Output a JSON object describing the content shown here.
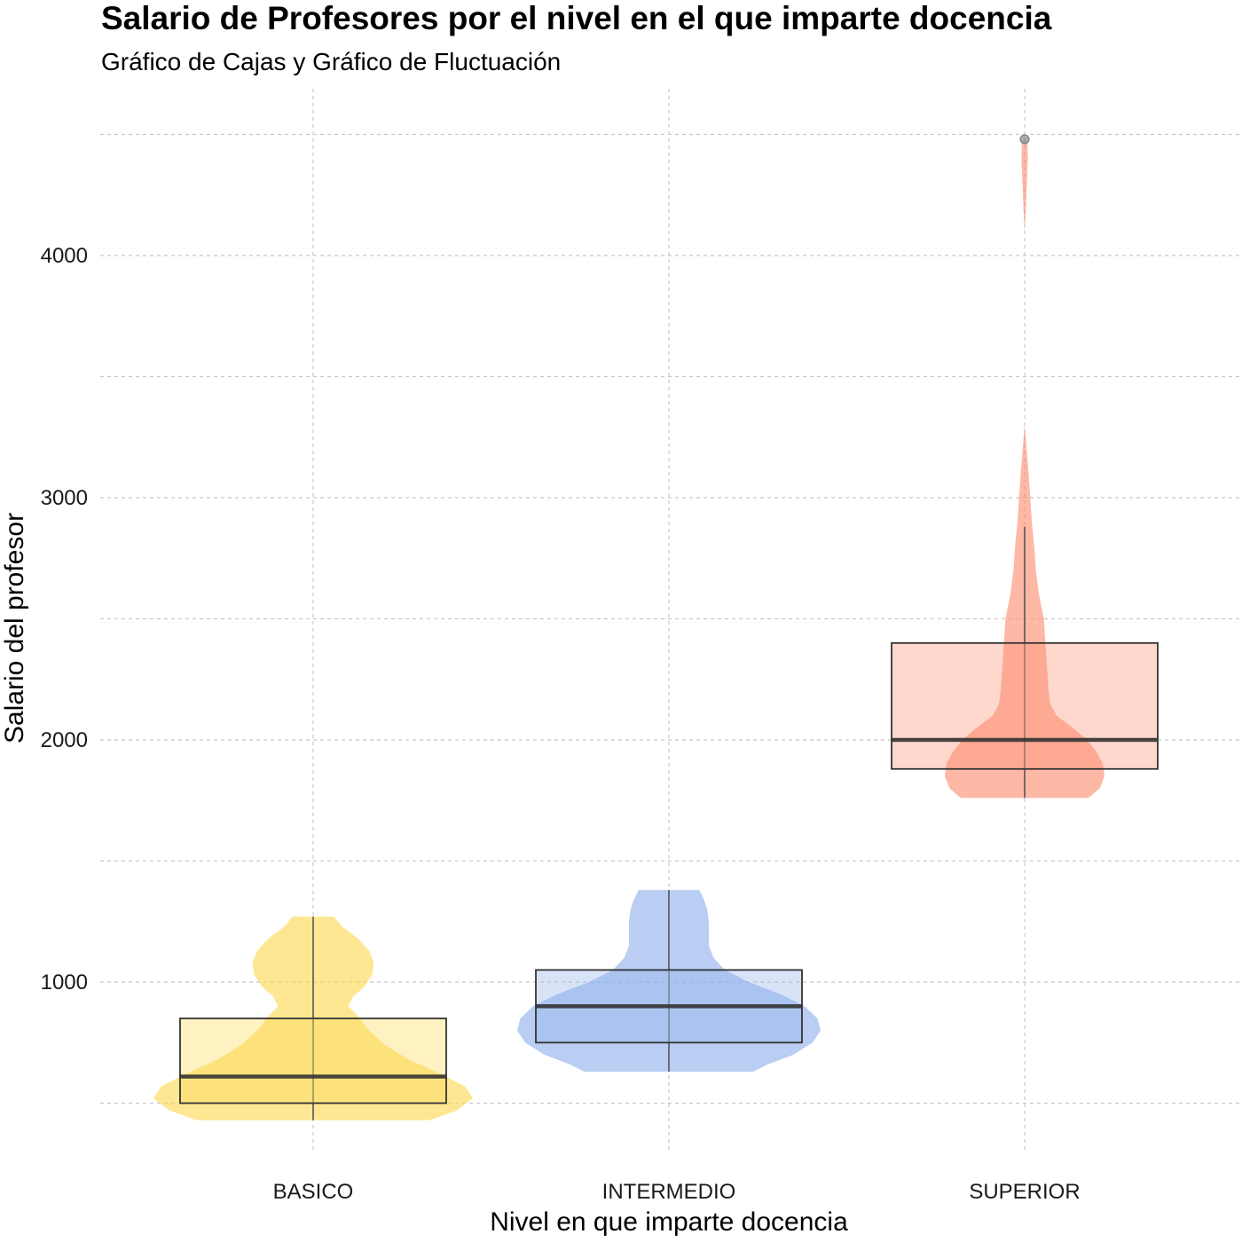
{
  "chart_data": {
    "type": "violin+box",
    "title": "Salario de Profesores por el nivel en el que imparte docencia",
    "subtitle": "Gráfico de Cajas y Gráfico de Fluctuación",
    "xlabel": "Nivel en que imparte docencia",
    "ylabel": "Salario del profesor",
    "categories": [
      "BASICO",
      "INTERMEDIO",
      "SUPERIOR"
    ],
    "ylim": [
      300,
      4550
    ],
    "yticks": [
      1000,
      2000,
      3000,
      4000
    ],
    "grid": true,
    "series": [
      {
        "category": "BASICO",
        "color": "#FDD94F",
        "box": {
          "q1": 500,
          "median": 610,
          "q3": 850,
          "whisker_low": 430,
          "whisker_high": 1270
        },
        "violin": {
          "min": 430,
          "max": 1270,
          "profile": [
            [
              430,
              0.73
            ],
            [
              470,
              0.9
            ],
            [
              520,
              1.0
            ],
            [
              570,
              0.95
            ],
            [
              620,
              0.8
            ],
            [
              680,
              0.6
            ],
            [
              740,
              0.45
            ],
            [
              800,
              0.35
            ],
            [
              860,
              0.28
            ],
            [
              900,
              0.22
            ],
            [
              940,
              0.25
            ],
            [
              980,
              0.32
            ],
            [
              1030,
              0.37
            ],
            [
              1080,
              0.38
            ],
            [
              1130,
              0.35
            ],
            [
              1180,
              0.28
            ],
            [
              1230,
              0.18
            ],
            [
              1270,
              0.13
            ]
          ]
        },
        "outliers": []
      },
      {
        "category": "INTERMEDIO",
        "color": "#8EB0EA",
        "box": {
          "q1": 750,
          "median": 900,
          "q3": 1050,
          "whisker_low": 630,
          "whisker_high": 1380
        },
        "violin": {
          "min": 630,
          "max": 1380,
          "profile": [
            [
              630,
              0.53
            ],
            [
              660,
              0.62
            ],
            [
              700,
              0.78
            ],
            [
              750,
              0.9
            ],
            [
              800,
              0.95
            ],
            [
              850,
              0.93
            ],
            [
              900,
              0.85
            ],
            [
              950,
              0.7
            ],
            [
              1000,
              0.5
            ],
            [
              1050,
              0.35
            ],
            [
              1100,
              0.28
            ],
            [
              1150,
              0.25
            ],
            [
              1200,
              0.25
            ],
            [
              1250,
              0.25
            ],
            [
              1300,
              0.24
            ],
            [
              1340,
              0.22
            ],
            [
              1380,
              0.19
            ]
          ]
        },
        "outliers": []
      },
      {
        "category": "SUPERIOR",
        "color": "#FC8D70",
        "box": {
          "q1": 1880,
          "median": 2000,
          "q3": 2400,
          "whisker_low": 1760,
          "whisker_high": 2880
        },
        "violin": {
          "min": 1760,
          "max": 4480,
          "segments": [
            [
              [
                1760,
                0.4
              ],
              [
                1800,
                0.47
              ],
              [
                1850,
                0.5
              ],
              [
                1900,
                0.49
              ],
              [
                1950,
                0.45
              ],
              [
                2000,
                0.39
              ],
              [
                2050,
                0.3
              ],
              [
                2100,
                0.2
              ],
              [
                2150,
                0.16
              ],
              [
                2200,
                0.15
              ],
              [
                2300,
                0.14
              ],
              [
                2400,
                0.13
              ],
              [
                2500,
                0.12
              ],
              [
                2600,
                0.09
              ],
              [
                2700,
                0.07
              ],
              [
                2800,
                0.06
              ],
              [
                2900,
                0.045
              ],
              [
                3000,
                0.035
              ],
              [
                3100,
                0.025
              ],
              [
                3200,
                0.012
              ],
              [
                3300,
                0.0
              ]
            ],
            [
              [
                4100,
                0.0
              ],
              [
                4200,
                0.008
              ],
              [
                4300,
                0.014
              ],
              [
                4400,
                0.02
              ],
              [
                4460,
                0.018
              ],
              [
                4480,
                0.0
              ]
            ]
          ]
        },
        "outliers": [
          4480
        ]
      }
    ]
  }
}
